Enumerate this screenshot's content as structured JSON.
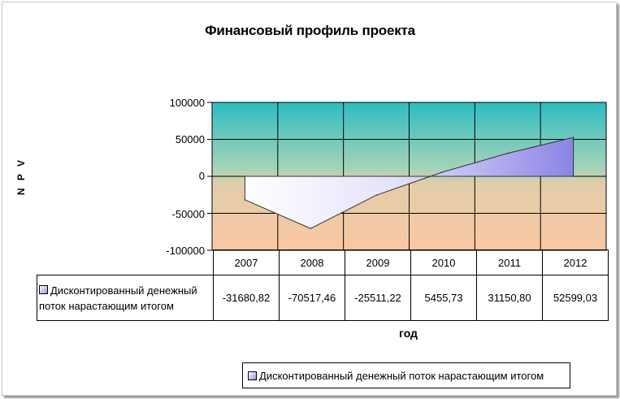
{
  "chart_data": {
    "type": "area",
    "title": "Финансовый профиль проекта",
    "ylabel": "N P V",
    "xlabel": "год",
    "categories": [
      "2007",
      "2008",
      "2009",
      "2010",
      "2011",
      "2012"
    ],
    "series": [
      {
        "name": "Дисконтированный денежный поток нарастающим итогом",
        "values": [
          -31680.82,
          -70517.46,
          -25511.22,
          5455.73,
          31150.8,
          52599.03
        ],
        "labels": [
          "-31680,82",
          "-70517,46",
          "-25511,22",
          "5455,73",
          "31150,80",
          "52599,03"
        ]
      }
    ],
    "ylim": [
      -100000,
      100000
    ],
    "yticks": [
      "100000",
      "50000",
      "0",
      "-50000",
      "-100000"
    ],
    "grid": true,
    "legend_position": "bottom",
    "data_table": true,
    "colors": {
      "bg_top": "#2bbdc2",
      "bg_bottom": "#fbc7a3",
      "series_dark": "#8c84e6",
      "series_light": "#ffffff"
    }
  }
}
